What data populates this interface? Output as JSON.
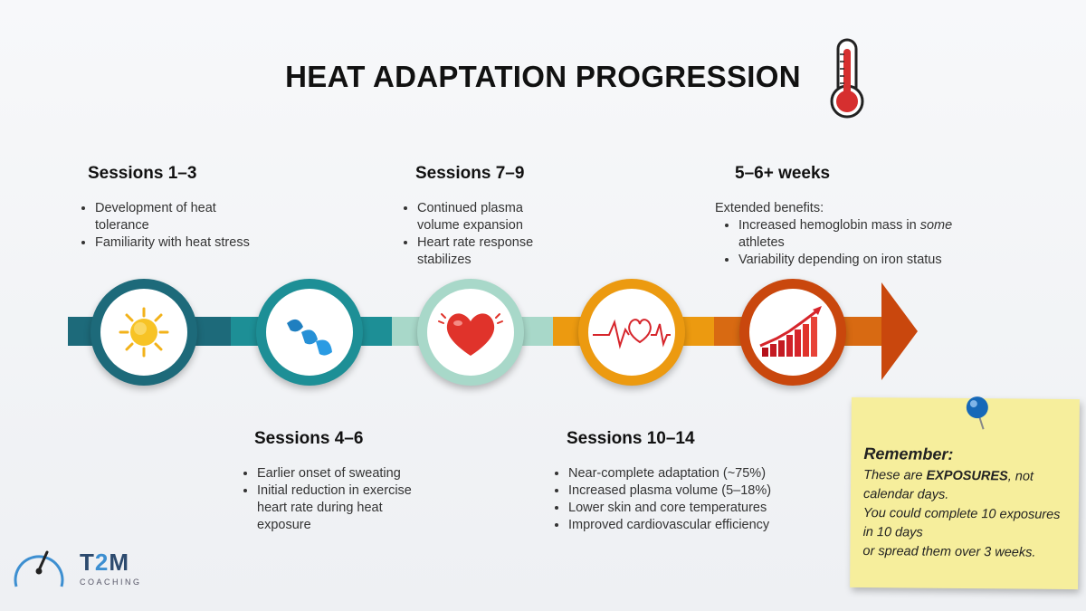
{
  "title": "HEAT ADAPTATION PROGRESSION",
  "stages": [
    {
      "heading": "Sessions 1–3",
      "bullets": [
        "Development of heat tolerance",
        "Familiarity with heat stress"
      ],
      "icon": "sun-icon",
      "color": "#1d6a7a"
    },
    {
      "heading": "Sessions 4–6",
      "bullets": [
        "Earlier onset of sweating",
        "Initial reduction in exercise heart rate during heat exposure"
      ],
      "icon": "water-drops-icon",
      "color": "#1d8f96"
    },
    {
      "heading": "Sessions 7–9",
      "bullets": [
        "Continued plasma volume expansion",
        "Heart rate response stabilizes"
      ],
      "icon": "heart-icon",
      "color": "#9ed3c4"
    },
    {
      "heading": "Sessions 10–14",
      "bullets": [
        "Near-complete adaptation (~75%)",
        "Increased plasma volume (5–18%)",
        "Lower skin and core temperatures",
        "Improved cardiovascular efficiency"
      ],
      "icon": "heartbeat-icon",
      "color": "#ec9a10"
    },
    {
      "heading": "5–6+ weeks",
      "intro": "Extended benefits:",
      "bullets_rich": [
        [
          "Increased hemoglobin mass in ",
          "some",
          " athletes"
        ]
      ],
      "bullets": [
        "Variability depending on iron status"
      ],
      "icon": "bar-chart-growth-icon",
      "color": "#c9470d"
    }
  ],
  "note": {
    "heading": "Remember:",
    "line1_pre": "These are ",
    "line1_em": "EXPOSURES",
    "line1_post": ", not calendar days.",
    "line2": "You could complete 10 exposures in 10 days",
    "line3": "or spread them over 3 weeks."
  },
  "logo": {
    "name_pre": "T",
    "name_accent": "2",
    "name_post": "M",
    "sub": "COACHING"
  }
}
